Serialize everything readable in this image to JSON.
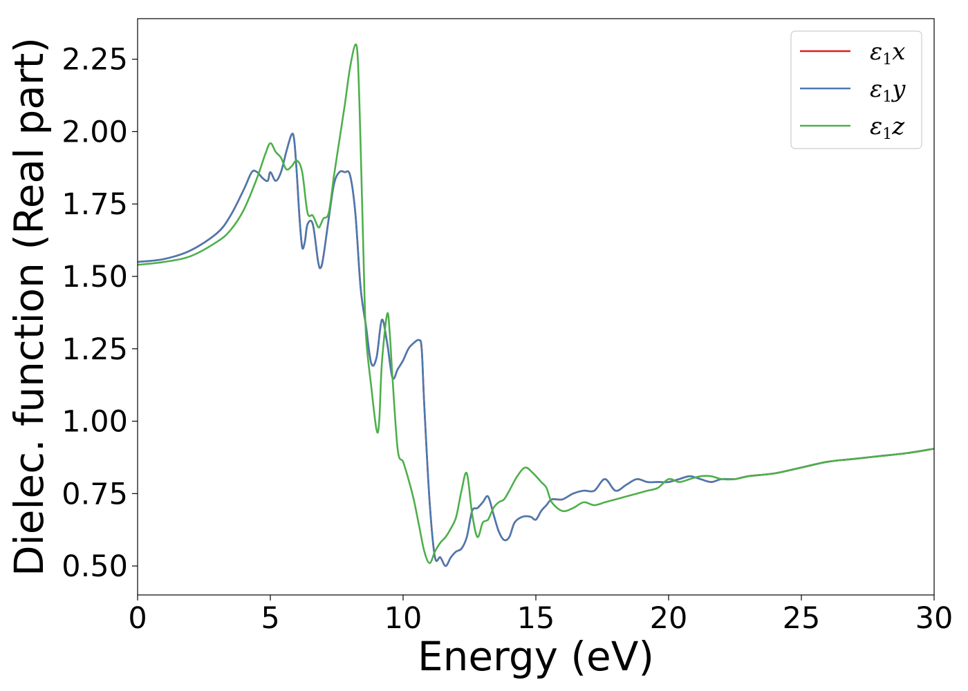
{
  "chart_data": {
    "type": "line",
    "title": "",
    "xlabel": "Energy (eV)",
    "ylabel": "Dielec. function (Real part)",
    "xlim": [
      0,
      30
    ],
    "ylim": [
      0.4,
      2.39
    ],
    "xticks": [
      0,
      5,
      10,
      15,
      20,
      25,
      30
    ],
    "xtick_labels": [
      "0",
      "5",
      "10",
      "15",
      "20",
      "25",
      "30"
    ],
    "yticks": [
      0.5,
      0.75,
      1.0,
      1.25,
      1.5,
      1.75,
      2.0,
      2.25
    ],
    "ytick_labels": [
      "0.50",
      "0.75",
      "1.00",
      "1.25",
      "1.50",
      "1.75",
      "2.00",
      "2.25"
    ],
    "grid": false,
    "legend_position": "top-right",
    "series": [
      {
        "name": "ε1x",
        "sym": "ε",
        "sub": "1",
        "var": "x",
        "color": "#e41a1c",
        "x": [
          0,
          1,
          2,
          3,
          3.5,
          4,
          4.3,
          4.5,
          4.7,
          4.9,
          5.0,
          5.2,
          5.4,
          5.6,
          5.8,
          5.9,
          6.0,
          6.1,
          6.2,
          6.3,
          6.4,
          6.6,
          6.8,
          6.9,
          7.0,
          7.2,
          7.4,
          7.6,
          7.8,
          8.0,
          8.2,
          8.4,
          8.6,
          8.8,
          9.0,
          9.2,
          9.4,
          9.6,
          9.8,
          10.0,
          10.2,
          10.4,
          10.6,
          10.7,
          10.8,
          11.0,
          11.2,
          11.4,
          11.6,
          11.8,
          12.0,
          12.2,
          12.4,
          12.6,
          12.8,
          13.0,
          13.2,
          13.4,
          13.6,
          13.8,
          14.0,
          14.2,
          14.5,
          14.8,
          15.0,
          15.2,
          15.4,
          15.6,
          16.0,
          16.4,
          16.8,
          17.2,
          17.6,
          18.0,
          18.4,
          18.8,
          19.2,
          19.6,
          20.0,
          20.4,
          20.8,
          21.2,
          21.6,
          22.0,
          22.5,
          23.0,
          24.0,
          25.0,
          26.0,
          27.0,
          28.0,
          29.0,
          30.0
        ],
        "y": [
          1.55,
          1.56,
          1.59,
          1.65,
          1.71,
          1.8,
          1.86,
          1.86,
          1.84,
          1.83,
          1.86,
          1.83,
          1.86,
          1.93,
          1.99,
          1.97,
          1.85,
          1.7,
          1.6,
          1.62,
          1.68,
          1.68,
          1.55,
          1.53,
          1.57,
          1.7,
          1.82,
          1.86,
          1.86,
          1.85,
          1.72,
          1.46,
          1.33,
          1.2,
          1.22,
          1.35,
          1.27,
          1.15,
          1.18,
          1.21,
          1.25,
          1.27,
          1.28,
          1.25,
          1.05,
          0.72,
          0.53,
          0.53,
          0.5,
          0.53,
          0.55,
          0.56,
          0.6,
          0.69,
          0.7,
          0.72,
          0.74,
          0.68,
          0.62,
          0.59,
          0.6,
          0.65,
          0.67,
          0.67,
          0.66,
          0.69,
          0.71,
          0.73,
          0.73,
          0.75,
          0.76,
          0.76,
          0.8,
          0.76,
          0.78,
          0.8,
          0.79,
          0.79,
          0.79,
          0.8,
          0.81,
          0.8,
          0.79,
          0.8,
          0.8,
          0.81,
          0.82,
          0.84,
          0.86,
          0.87,
          0.88,
          0.89,
          0.905
        ]
      },
      {
        "name": "ε1y",
        "sym": "ε",
        "sub": "1",
        "var": "y",
        "color": "#4a79b1",
        "x": [
          0,
          1,
          2,
          3,
          3.5,
          4,
          4.3,
          4.5,
          4.7,
          4.9,
          5.0,
          5.2,
          5.4,
          5.6,
          5.8,
          5.9,
          6.0,
          6.1,
          6.2,
          6.3,
          6.4,
          6.6,
          6.8,
          6.9,
          7.0,
          7.2,
          7.4,
          7.6,
          7.8,
          8.0,
          8.2,
          8.4,
          8.6,
          8.8,
          9.0,
          9.2,
          9.4,
          9.6,
          9.8,
          10.0,
          10.2,
          10.4,
          10.6,
          10.7,
          10.8,
          11.0,
          11.2,
          11.4,
          11.6,
          11.8,
          12.0,
          12.2,
          12.4,
          12.6,
          12.8,
          13.0,
          13.2,
          13.4,
          13.6,
          13.8,
          14.0,
          14.2,
          14.5,
          14.8,
          15.0,
          15.2,
          15.4,
          15.6,
          16.0,
          16.4,
          16.8,
          17.2,
          17.6,
          18.0,
          18.4,
          18.8,
          19.2,
          19.6,
          20.0,
          20.4,
          20.8,
          21.2,
          21.6,
          22.0,
          22.5,
          23.0,
          24.0,
          25.0,
          26.0,
          27.0,
          28.0,
          29.0,
          30.0
        ],
        "y": [
          1.55,
          1.56,
          1.59,
          1.65,
          1.71,
          1.8,
          1.86,
          1.86,
          1.84,
          1.83,
          1.86,
          1.83,
          1.86,
          1.93,
          1.99,
          1.97,
          1.85,
          1.7,
          1.6,
          1.62,
          1.68,
          1.68,
          1.55,
          1.53,
          1.57,
          1.7,
          1.82,
          1.86,
          1.86,
          1.85,
          1.72,
          1.46,
          1.33,
          1.2,
          1.22,
          1.35,
          1.27,
          1.15,
          1.18,
          1.21,
          1.25,
          1.27,
          1.28,
          1.25,
          1.05,
          0.72,
          0.53,
          0.53,
          0.5,
          0.53,
          0.55,
          0.56,
          0.6,
          0.69,
          0.7,
          0.72,
          0.74,
          0.68,
          0.62,
          0.59,
          0.6,
          0.65,
          0.67,
          0.67,
          0.66,
          0.69,
          0.71,
          0.73,
          0.73,
          0.75,
          0.76,
          0.76,
          0.8,
          0.76,
          0.78,
          0.8,
          0.79,
          0.79,
          0.79,
          0.8,
          0.81,
          0.8,
          0.79,
          0.8,
          0.8,
          0.81,
          0.82,
          0.84,
          0.86,
          0.87,
          0.88,
          0.89,
          0.905
        ]
      },
      {
        "name": "ε1z",
        "sym": "ε",
        "sub": "1",
        "var": "z",
        "color": "#4daf4a",
        "x": [
          0,
          1,
          2,
          3,
          3.5,
          4,
          4.5,
          4.8,
          5.0,
          5.2,
          5.4,
          5.6,
          5.8,
          6.0,
          6.2,
          6.4,
          6.6,
          6.8,
          6.9,
          7.0,
          7.2,
          7.4,
          7.6,
          7.8,
          8.0,
          8.2,
          8.3,
          8.4,
          8.5,
          8.6,
          8.8,
          9.0,
          9.1,
          9.2,
          9.4,
          9.5,
          9.6,
          9.8,
          10.0,
          10.2,
          10.4,
          10.6,
          10.8,
          11.0,
          11.2,
          11.4,
          11.6,
          11.8,
          12.0,
          12.2,
          12.4,
          12.6,
          12.8,
          13.0,
          13.2,
          13.4,
          13.6,
          13.8,
          14.0,
          14.3,
          14.6,
          14.9,
          15.2,
          15.4,
          15.6,
          16.0,
          16.4,
          16.8,
          17.2,
          17.6,
          18.0,
          18.4,
          18.8,
          19.2,
          19.6,
          20.0,
          20.4,
          20.8,
          21.2,
          21.6,
          22.0,
          22.5,
          23.0,
          24.0,
          25.0,
          26.0,
          27.0,
          28.0,
          29.0,
          30.0
        ],
        "y": [
          1.54,
          1.55,
          1.57,
          1.62,
          1.66,
          1.73,
          1.84,
          1.92,
          1.96,
          1.93,
          1.91,
          1.87,
          1.88,
          1.9,
          1.86,
          1.72,
          1.71,
          1.67,
          1.68,
          1.7,
          1.72,
          1.85,
          1.97,
          2.09,
          2.22,
          2.3,
          2.24,
          1.95,
          1.6,
          1.3,
          1.12,
          0.97,
          1.0,
          1.2,
          1.37,
          1.3,
          1.15,
          0.9,
          0.86,
          0.8,
          0.73,
          0.64,
          0.55,
          0.51,
          0.55,
          0.58,
          0.6,
          0.63,
          0.67,
          0.76,
          0.82,
          0.68,
          0.6,
          0.65,
          0.66,
          0.7,
          0.72,
          0.73,
          0.76,
          0.81,
          0.84,
          0.82,
          0.79,
          0.77,
          0.72,
          0.69,
          0.7,
          0.72,
          0.71,
          0.72,
          0.73,
          0.74,
          0.75,
          0.76,
          0.77,
          0.8,
          0.79,
          0.8,
          0.81,
          0.81,
          0.8,
          0.8,
          0.81,
          0.82,
          0.84,
          0.86,
          0.87,
          0.88,
          0.89,
          0.905
        ]
      }
    ]
  }
}
